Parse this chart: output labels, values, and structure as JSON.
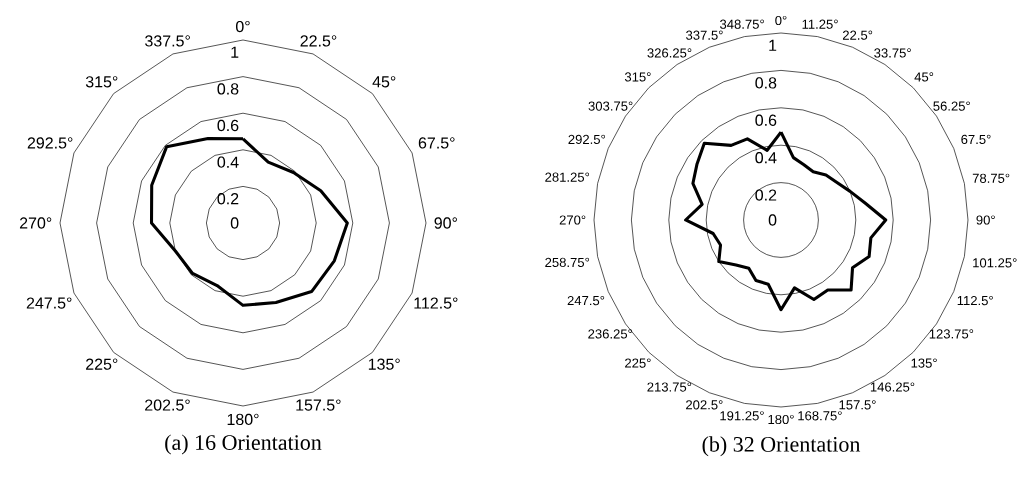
{
  "chart_data": [
    {
      "type": "radar",
      "title": "(a) 16 Orientation",
      "categories": [
        "0°",
        "22.5°",
        "45°",
        "67.5°",
        "90°",
        "112.5°",
        "135°",
        "157.5°",
        "180°",
        "202.5°",
        "225°",
        "247.5°",
        "270°",
        "292.5°",
        "315°",
        "337.5°"
      ],
      "series": [
        {
          "color": "#000000",
          "values": [
            0.46,
            0.36,
            0.39,
            0.46,
            0.57,
            0.54,
            0.53,
            0.47,
            0.45,
            0.37,
            0.39,
            0.4,
            0.5,
            0.54,
            0.59,
            0.5
          ]
        }
      ],
      "ylim": [
        0,
        1
      ],
      "yticks": [
        0,
        0.2,
        0.4,
        0.6,
        0.8,
        1
      ],
      "grid": true
    },
    {
      "type": "radar",
      "title": "(b) 32 Orientation",
      "categories": [
        "0°",
        "11.25°",
        "22.5°",
        "33.75°",
        "45°",
        "56.25°",
        "67.5°",
        "78.75°",
        "90°",
        "101.25°",
        "112.5°",
        "123.75°",
        "135°",
        "146.25°",
        "157.5°",
        "168.75°",
        "180°",
        "191.25°",
        "202.5°",
        "213.75°",
        "225°",
        "236.25°",
        "247.5°",
        "258.75°",
        "270°",
        "281.25°",
        "292.5°",
        "303.75°",
        "315°",
        "326.25°",
        "337.5°",
        "348.75°"
      ],
      "series": [
        {
          "color": "#000000",
          "values": [
            0.47,
            0.34,
            0.32,
            0.31,
            0.34,
            0.36,
            0.4,
            0.46,
            0.56,
            0.49,
            0.51,
            0.46,
            0.53,
            0.45,
            0.46,
            0.37,
            0.48,
            0.35,
            0.35,
            0.31,
            0.34,
            0.4,
            0.35,
            0.37,
            0.51,
            0.43,
            0.51,
            0.54,
            0.58,
            0.48,
            0.47,
            0.38
          ]
        }
      ],
      "ylim": [
        0,
        1
      ],
      "yticks": [
        0,
        0.2,
        0.4,
        0.6,
        0.8,
        1
      ],
      "grid": true
    }
  ]
}
